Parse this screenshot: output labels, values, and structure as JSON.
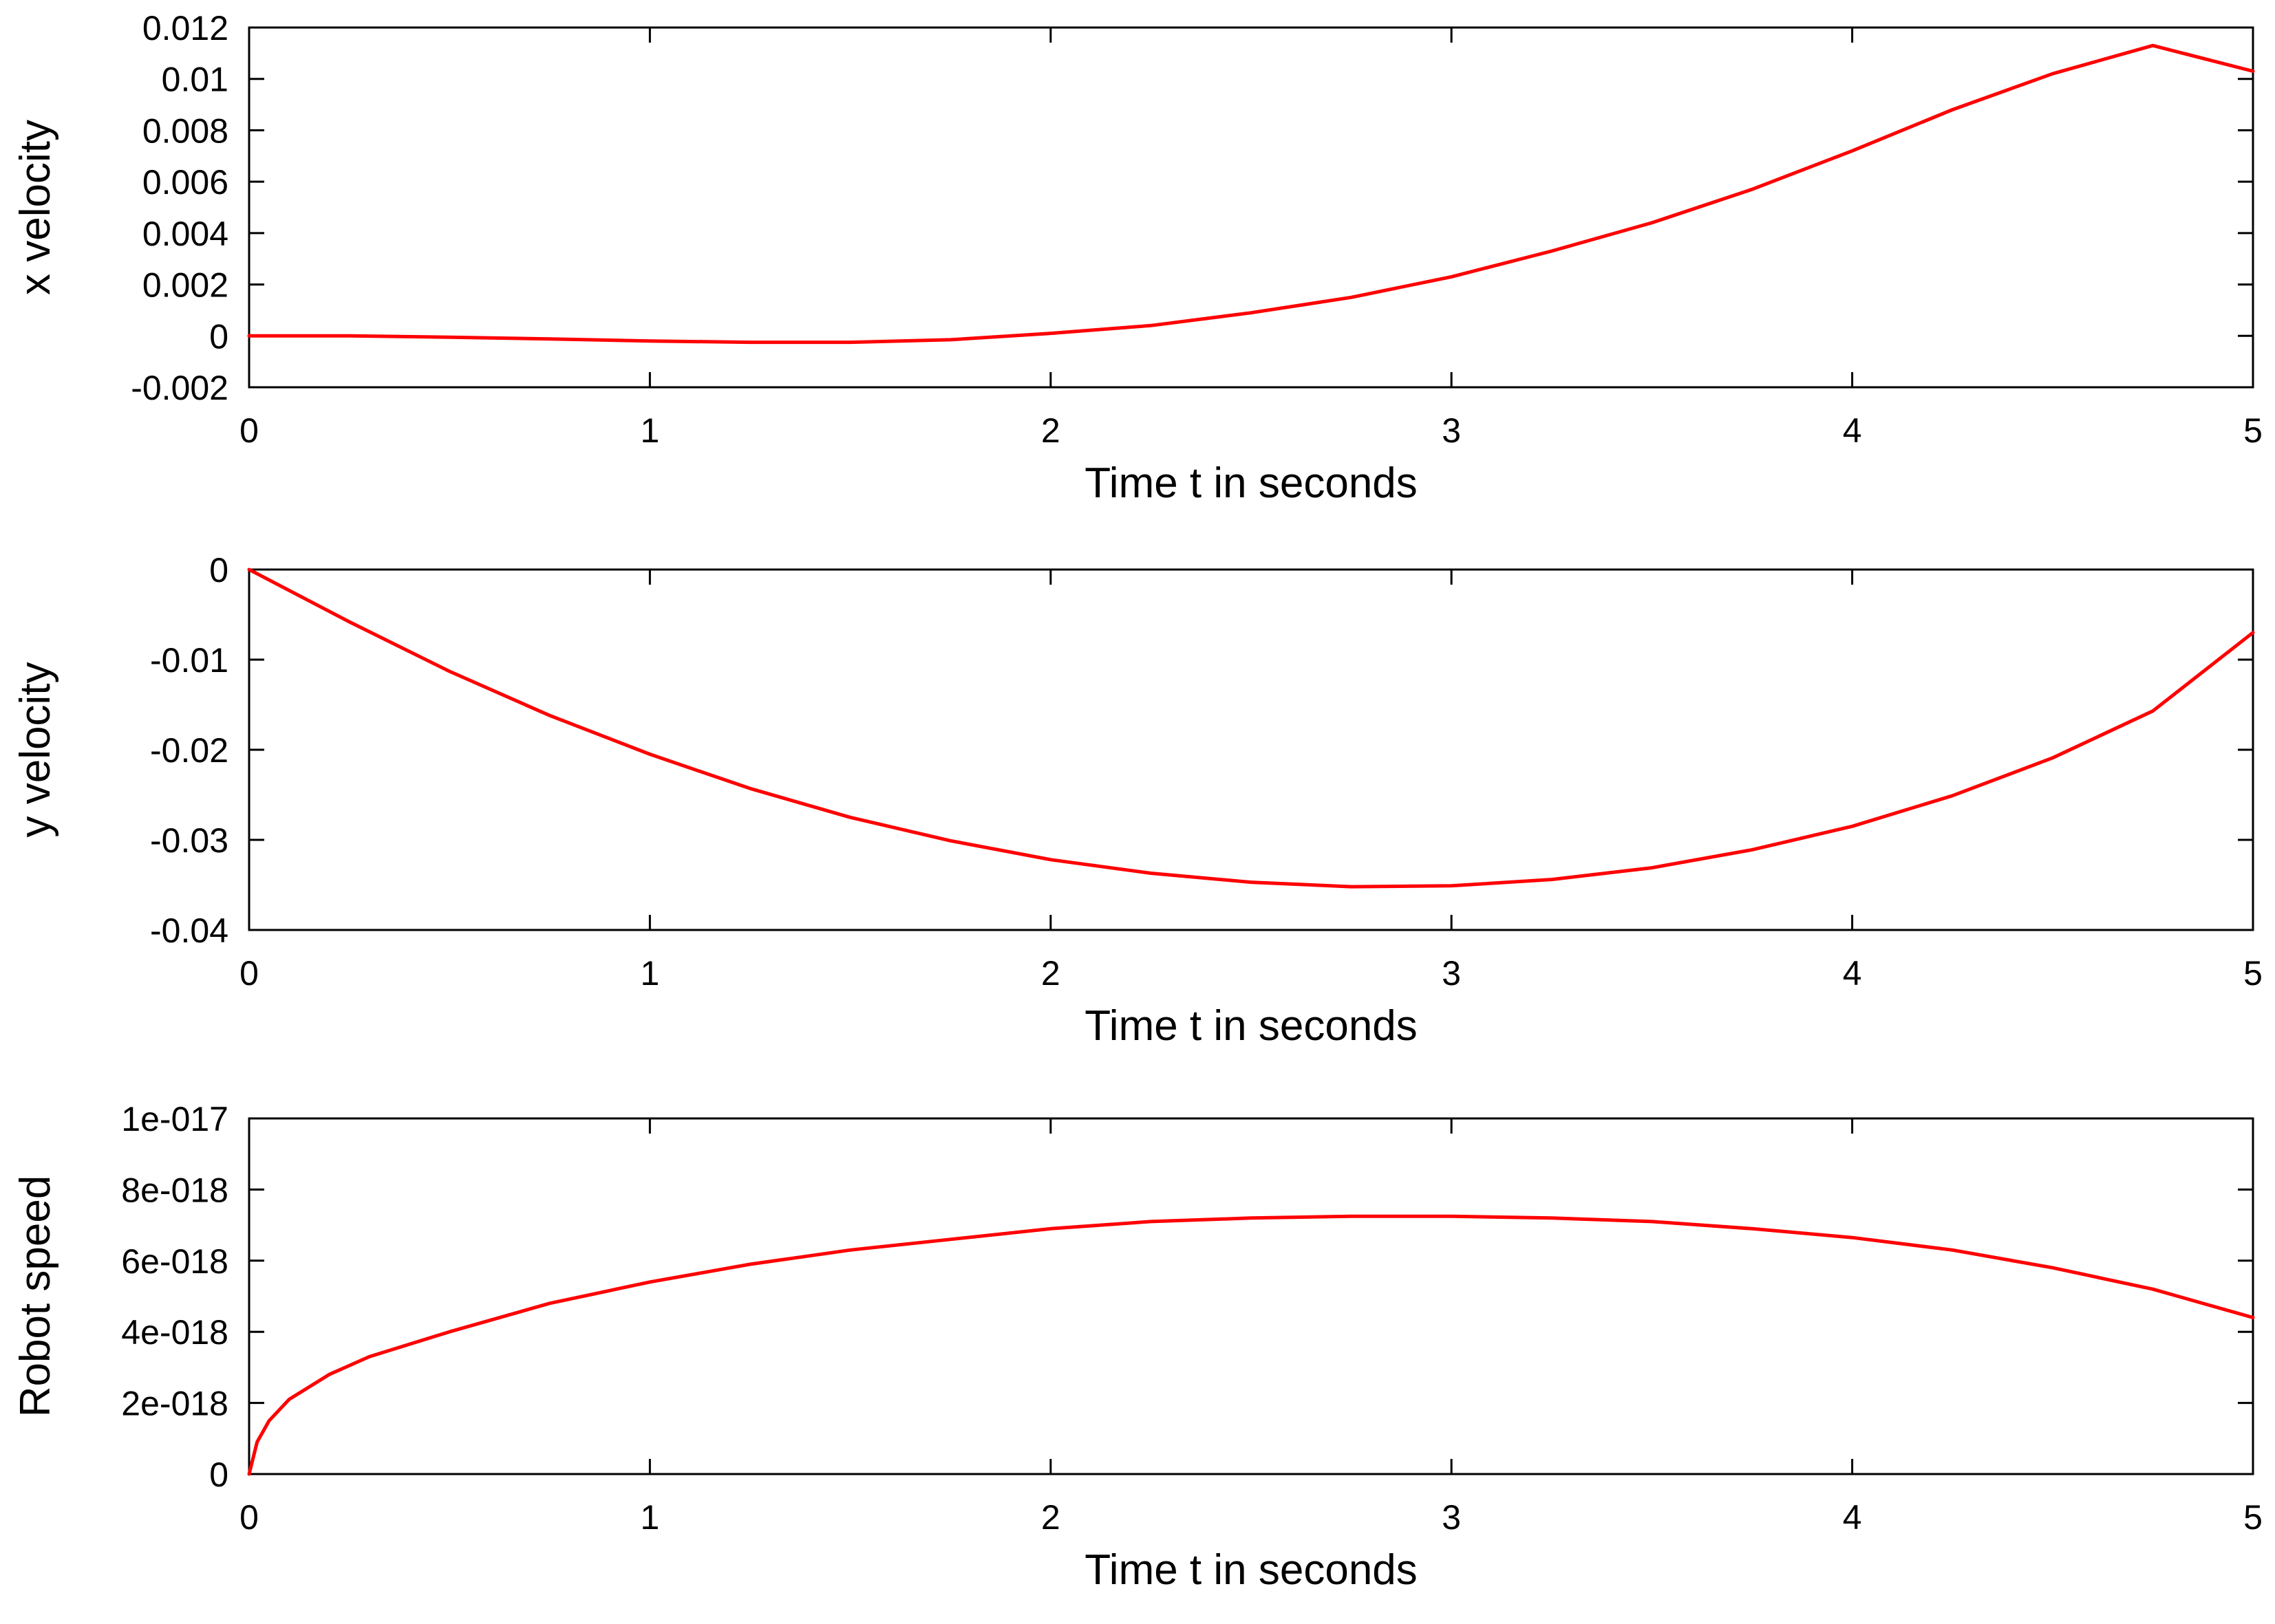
{
  "line_color": "#ff0000",
  "axes_color": "#000000",
  "chart_data": [
    {
      "type": "line",
      "xlabel": "Time t in seconds",
      "ylabel": "x velocity",
      "xlim": [
        0,
        5
      ],
      "ylim": [
        -0.002,
        0.012
      ],
      "xticks": [
        0,
        1,
        2,
        3,
        4,
        5
      ],
      "xtick_labels": [
        "0",
        "1",
        "2",
        "3",
        "4",
        "5"
      ],
      "yticks": [
        -0.002,
        0,
        0.002,
        0.004,
        0.006,
        0.008,
        0.01,
        0.012
      ],
      "ytick_labels": [
        "-0.002",
        "0",
        "0.002",
        "0.004",
        "0.006",
        "0.008",
        "0.01",
        "0.012"
      ],
      "grid": false,
      "series": [
        {
          "x": [
            0,
            0.25,
            0.5,
            0.75,
            1.0,
            1.25,
            1.5,
            1.75,
            2.0,
            2.25,
            2.5,
            2.75,
            3.0,
            3.25,
            3.5,
            3.75,
            4.0,
            4.25,
            4.5,
            4.75,
            5.0
          ],
          "y": [
            0,
            0,
            -5e-05,
            -0.00012,
            -0.0002,
            -0.00025,
            -0.00025,
            -0.00015,
            0.0001,
            0.0004,
            0.0009,
            0.0015,
            0.0023,
            0.0033,
            0.0044,
            0.0057,
            0.0072,
            0.0088,
            0.0102,
            0.0113,
            0.0103
          ]
        }
      ]
    },
    {
      "type": "line",
      "xlabel": "Time t in seconds",
      "ylabel": "y velocity",
      "xlim": [
        0,
        5
      ],
      "ylim": [
        -0.04,
        0
      ],
      "xticks": [
        0,
        1,
        2,
        3,
        4,
        5
      ],
      "xtick_labels": [
        "0",
        "1",
        "2",
        "3",
        "4",
        "5"
      ],
      "yticks": [
        -0.04,
        -0.03,
        -0.02,
        -0.01,
        0
      ],
      "ytick_labels": [
        "-0.04",
        "-0.03",
        "-0.02",
        "-0.01",
        "0"
      ],
      "grid": false,
      "series": [
        {
          "x": [
            0,
            0.25,
            0.5,
            0.75,
            1.0,
            1.25,
            1.5,
            1.75,
            2.0,
            2.25,
            2.5,
            2.75,
            3.0,
            3.25,
            3.5,
            3.75,
            4.0,
            4.25,
            4.5,
            4.75,
            5.0
          ],
          "y": [
            0,
            -0.0058,
            -0.0113,
            -0.0162,
            -0.0205,
            -0.0243,
            -0.0275,
            -0.0301,
            -0.0322,
            -0.0337,
            -0.0347,
            -0.0352,
            -0.0351,
            -0.0344,
            -0.0331,
            -0.0311,
            -0.0285,
            -0.0251,
            -0.0209,
            -0.0157,
            -0.007
          ]
        }
      ]
    },
    {
      "type": "line",
      "xlabel": "Time t in seconds",
      "ylabel": "Robot speed",
      "xlim": [
        0,
        5
      ],
      "ylim": [
        0,
        1e-17
      ],
      "xticks": [
        0,
        1,
        2,
        3,
        4,
        5
      ],
      "xtick_labels": [
        "0",
        "1",
        "2",
        "3",
        "4",
        "5"
      ],
      "yticks": [
        0,
        2e-18,
        4e-18,
        6e-18,
        8e-18,
        1e-17
      ],
      "ytick_labels": [
        "0",
        "2e-018",
        "4e-018",
        "6e-018",
        "8e-018",
        "1e-017"
      ],
      "grid": false,
      "series": [
        {
          "x": [
            0,
            0.02,
            0.05,
            0.1,
            0.2,
            0.3,
            0.5,
            0.75,
            1.0,
            1.25,
            1.5,
            1.75,
            2.0,
            2.25,
            2.5,
            2.75,
            3.0,
            3.25,
            3.5,
            3.75,
            4.0,
            4.25,
            4.5,
            4.75,
            5.0
          ],
          "y": [
            0,
            9e-19,
            1.5e-18,
            2.1e-18,
            2.8e-18,
            3.3e-18,
            4e-18,
            4.8e-18,
            5.4e-18,
            5.9e-18,
            6.3e-18,
            6.6e-18,
            6.9e-18,
            7.1e-18,
            7.2e-18,
            7.25e-18,
            7.25e-18,
            7.2e-18,
            7.1e-18,
            6.9e-18,
            6.65e-18,
            6.3e-18,
            5.8e-18,
            5.2e-18,
            4.4e-18
          ]
        }
      ]
    }
  ]
}
